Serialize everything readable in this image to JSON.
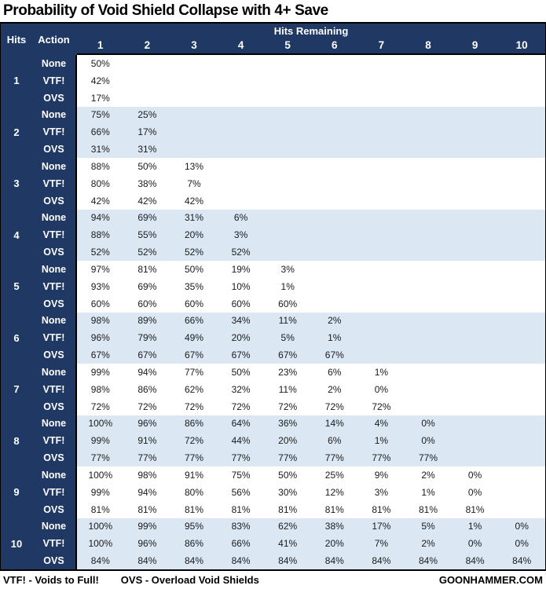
{
  "title": "Probability of Void Shield Collapse with 4+ Save",
  "colors": {
    "navy": "#1F3864",
    "alt_row": "#dbe8f4",
    "row": "#ffffff",
    "text": "#1a1a1a"
  },
  "footer": {
    "legend_vtf": "VTF! - Voids to Full!",
    "legend_ovs": "OVS - Overload Void Shields",
    "brand": "GOONHAMMER.COM"
  },
  "chart_data": {
    "type": "table",
    "title": "Probability of Void Shield Collapse with 4+ Save",
    "corner": {
      "hits_label": "Hits",
      "action_label": "Action"
    },
    "column_group_label": "Hits Remaining",
    "columns": [
      "1",
      "2",
      "3",
      "4",
      "5",
      "6",
      "7",
      "8",
      "9",
      "10"
    ],
    "groups": [
      {
        "hits": "1",
        "rows": [
          {
            "action": "None",
            "values": [
              "50%"
            ]
          },
          {
            "action": "VTF!",
            "values": [
              "42%"
            ]
          },
          {
            "action": "OVS",
            "values": [
              "17%"
            ]
          }
        ]
      },
      {
        "hits": "2",
        "rows": [
          {
            "action": "None",
            "values": [
              "75%",
              "25%"
            ]
          },
          {
            "action": "VTF!",
            "values": [
              "66%",
              "17%"
            ]
          },
          {
            "action": "OVS",
            "values": [
              "31%",
              "31%"
            ]
          }
        ]
      },
      {
        "hits": "3",
        "rows": [
          {
            "action": "None",
            "values": [
              "88%",
              "50%",
              "13%"
            ]
          },
          {
            "action": "VTF!",
            "values": [
              "80%",
              "38%",
              "7%"
            ]
          },
          {
            "action": "OVS",
            "values": [
              "42%",
              "42%",
              "42%"
            ]
          }
        ]
      },
      {
        "hits": "4",
        "rows": [
          {
            "action": "None",
            "values": [
              "94%",
              "69%",
              "31%",
              "6%"
            ]
          },
          {
            "action": "VTF!",
            "values": [
              "88%",
              "55%",
              "20%",
              "3%"
            ]
          },
          {
            "action": "OVS",
            "values": [
              "52%",
              "52%",
              "52%",
              "52%"
            ]
          }
        ]
      },
      {
        "hits": "5",
        "rows": [
          {
            "action": "None",
            "values": [
              "97%",
              "81%",
              "50%",
              "19%",
              "3%"
            ]
          },
          {
            "action": "VTF!",
            "values": [
              "93%",
              "69%",
              "35%",
              "10%",
              "1%"
            ]
          },
          {
            "action": "OVS",
            "values": [
              "60%",
              "60%",
              "60%",
              "60%",
              "60%"
            ]
          }
        ]
      },
      {
        "hits": "6",
        "rows": [
          {
            "action": "None",
            "values": [
              "98%",
              "89%",
              "66%",
              "34%",
              "11%",
              "2%"
            ]
          },
          {
            "action": "VTF!",
            "values": [
              "96%",
              "79%",
              "49%",
              "20%",
              "5%",
              "1%"
            ]
          },
          {
            "action": "OVS",
            "values": [
              "67%",
              "67%",
              "67%",
              "67%",
              "67%",
              "67%"
            ]
          }
        ]
      },
      {
        "hits": "7",
        "rows": [
          {
            "action": "None",
            "values": [
              "99%",
              "94%",
              "77%",
              "50%",
              "23%",
              "6%",
              "1%"
            ]
          },
          {
            "action": "VTF!",
            "values": [
              "98%",
              "86%",
              "62%",
              "32%",
              "11%",
              "2%",
              "0%"
            ]
          },
          {
            "action": "OVS",
            "values": [
              "72%",
              "72%",
              "72%",
              "72%",
              "72%",
              "72%",
              "72%"
            ]
          }
        ]
      },
      {
        "hits": "8",
        "rows": [
          {
            "action": "None",
            "values": [
              "100%",
              "96%",
              "86%",
              "64%",
              "36%",
              "14%",
              "4%",
              "0%"
            ]
          },
          {
            "action": "VTF!",
            "values": [
              "99%",
              "91%",
              "72%",
              "44%",
              "20%",
              "6%",
              "1%",
              "0%"
            ]
          },
          {
            "action": "OVS",
            "values": [
              "77%",
              "77%",
              "77%",
              "77%",
              "77%",
              "77%",
              "77%",
              "77%"
            ]
          }
        ]
      },
      {
        "hits": "9",
        "rows": [
          {
            "action": "None",
            "values": [
              "100%",
              "98%",
              "91%",
              "75%",
              "50%",
              "25%",
              "9%",
              "2%",
              "0%"
            ]
          },
          {
            "action": "VTF!",
            "values": [
              "99%",
              "94%",
              "80%",
              "56%",
              "30%",
              "12%",
              "3%",
              "1%",
              "0%"
            ]
          },
          {
            "action": "OVS",
            "values": [
              "81%",
              "81%",
              "81%",
              "81%",
              "81%",
              "81%",
              "81%",
              "81%",
              "81%"
            ]
          }
        ]
      },
      {
        "hits": "10",
        "rows": [
          {
            "action": "None",
            "values": [
              "100%",
              "99%",
              "95%",
              "83%",
              "62%",
              "38%",
              "17%",
              "5%",
              "1%",
              "0%"
            ]
          },
          {
            "action": "VTF!",
            "values": [
              "100%",
              "96%",
              "86%",
              "66%",
              "41%",
              "20%",
              "7%",
              "2%",
              "0%",
              "0%"
            ]
          },
          {
            "action": "OVS",
            "values": [
              "84%",
              "84%",
              "84%",
              "84%",
              "84%",
              "84%",
              "84%",
              "84%",
              "84%",
              "84%"
            ]
          }
        ]
      }
    ]
  }
}
